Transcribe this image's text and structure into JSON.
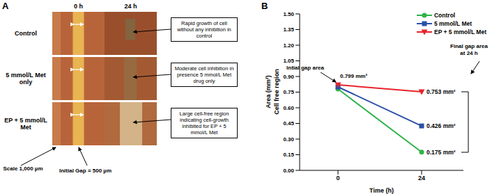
{
  "panel_a": {
    "label": "A",
    "columns": [
      "0 h",
      "24 h"
    ],
    "rows": [
      {
        "name": "Control",
        "note": "Rapid growth of cell without any inhibition in control"
      },
      {
        "name": "5 mmol/L Met only",
        "note": "Moderate cell inhibition in presence 5 mmol/L Met drug only"
      },
      {
        "name": "EP + 5 mmol/L Met",
        "note": "Large cell-free region indicating cell-growth inhibited for EP + 5 mmol/L Met"
      }
    ],
    "scale_text": "Scale 1,000 µm",
    "gap_text": "Initial Gap = 500 µm"
  },
  "chart_data": {
    "type": "line",
    "panel_label": "B",
    "x_label": "Time (h)",
    "y_label": [
      "Area (mm²)",
      "Cell free region"
    ],
    "x": [
      0,
      24
    ],
    "xlim": [
      -11,
      36
    ],
    "xticks": [
      0,
      24
    ],
    "ylim": [
      0,
      1.5
    ],
    "yticks": [
      {
        "value": 0,
        "label": "0.00"
      },
      {
        "value": 0.15,
        "label": "0.15"
      },
      {
        "value": 0.3,
        "label": "0.30"
      },
      {
        "value": 0.45,
        "label": "0.45"
      },
      {
        "value": 0.6,
        "label": "0.60"
      },
      {
        "value": 0.75,
        "label": "0.75"
      },
      {
        "value": 0.9,
        "label": "0.90"
      },
      {
        "value": 1.05,
        "label": "1.05"
      },
      {
        "value": 1.2,
        "label": "1.20"
      },
      {
        "value": 1.35,
        "label": "1.35"
      },
      {
        "value": 1.5,
        "label": "1.50"
      }
    ],
    "grid": false,
    "legend": "top-right",
    "data_labels": true,
    "series": [
      {
        "name": "Control",
        "color": "#2db34a",
        "marker": "circle",
        "values": [
          0.78,
          0.175
        ],
        "value_labels": [
          null,
          "0.175 mm²"
        ]
      },
      {
        "name": "5 mmol/L Met",
        "color": "#2a4fa8",
        "marker": "square",
        "values": [
          0.8,
          0.426
        ],
        "value_labels": [
          null,
          "0.426 mm²"
        ]
      },
      {
        "name": "EP + 5 mmol/L Met",
        "color": "#e8232a",
        "marker": "triangle-down",
        "values": [
          0.82,
          0.753
        ],
        "value_labels": [
          null,
          "0.753 mm²"
        ]
      }
    ],
    "annotations": [
      "Intial gap area",
      "0.799 mm²",
      "Final gap area at 24 h"
    ]
  }
}
